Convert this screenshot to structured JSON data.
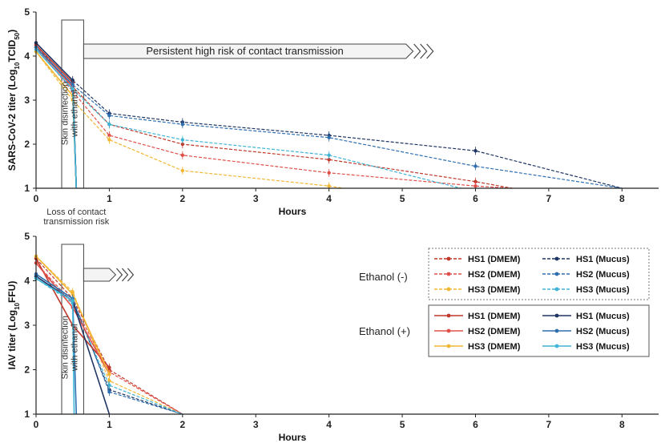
{
  "colors": {
    "HS1 (DMEM)": "#c0392b",
    "HS2 (DMEM)": "#e0504a",
    "HS3 (DMEM)": "#f2b632",
    "HS1 (Mucus)": "#1f3563",
    "HS2 (Mucus)": "#2f6fb0",
    "HS3 (Mucus)": "#3fb4d6"
  },
  "legend": {
    "group_minus": "Ethanol (-)",
    "group_plus": "Ethanol (+)",
    "entries": [
      "HS1 (DMEM)",
      "HS1 (Mucus)",
      "HS2 (DMEM)",
      "HS2 (Mucus)",
      "HS3 (DMEM)",
      "HS3 (Mucus)"
    ]
  },
  "chart_data": [
    {
      "type": "line",
      "xlabel": "Hours",
      "ylabel_main": "SARS-CoV-2 titer (Log",
      "ylabel_sub": "10",
      "ylabel_tail": "TCID",
      "ylabel_sub2": "50",
      "ylabel_close": ")",
      "xlim": [
        0,
        8.5
      ],
      "ylim": [
        1,
        5
      ],
      "x_ticks": [
        0,
        1,
        2,
        3,
        4,
        5,
        6,
        7,
        8
      ],
      "y_ticks": [
        1,
        2,
        3,
        4,
        5
      ],
      "banner": "Persistent high risk of contact transmission",
      "disinfection_note_line1": "Skin disinfection",
      "disinfection_note_line2": "with ethanol",
      "loss_note_line1": "Loss of contact",
      "loss_note_line2": "transmission risk",
      "series": [
        {
          "name": "HS1 (DMEM)",
          "ethanol": false,
          "x": [
            0,
            0.5,
            1,
            2,
            4,
            6,
            6.5
          ],
          "y": [
            4.25,
            3.3,
            2.45,
            2.0,
            1.65,
            1.15,
            1.0
          ]
        },
        {
          "name": "HS2 (DMEM)",
          "ethanol": false,
          "x": [
            0,
            0.5,
            1,
            2,
            4,
            6,
            6.5
          ],
          "y": [
            4.2,
            3.2,
            2.2,
            1.75,
            1.35,
            1.05,
            1.0
          ]
        },
        {
          "name": "HS3 (DMEM)",
          "ethanol": false,
          "x": [
            0,
            0.5,
            1,
            2,
            4,
            4.2
          ],
          "y": [
            4.1,
            3.0,
            2.1,
            1.4,
            1.05,
            1.0
          ]
        },
        {
          "name": "HS1 (Mucus)",
          "ethanol": false,
          "x": [
            0,
            0.5,
            1,
            2,
            4,
            6,
            8
          ],
          "y": [
            4.3,
            3.45,
            2.7,
            2.5,
            2.2,
            1.85,
            1.0
          ]
        },
        {
          "name": "HS2 (Mucus)",
          "ethanol": false,
          "x": [
            0,
            0.5,
            1,
            2,
            4,
            6,
            8
          ],
          "y": [
            4.2,
            3.35,
            2.65,
            2.45,
            2.15,
            1.5,
            1.0
          ]
        },
        {
          "name": "HS3 (Mucus)",
          "ethanol": false,
          "x": [
            0,
            0.5,
            1,
            2,
            4,
            5.8
          ],
          "y": [
            4.15,
            3.25,
            2.45,
            2.1,
            1.75,
            1.0
          ]
        },
        {
          "name": "HS1 (DMEM)",
          "ethanol": true,
          "x": [
            0,
            0.5,
            0.55
          ],
          "y": [
            4.25,
            3.4,
            1.0
          ]
        },
        {
          "name": "HS2 (DMEM)",
          "ethanol": true,
          "x": [
            0,
            0.5,
            0.55
          ],
          "y": [
            4.2,
            3.3,
            1.0
          ]
        },
        {
          "name": "HS3 (DMEM)",
          "ethanol": true,
          "x": [
            0,
            0.5,
            0.55
          ],
          "y": [
            4.1,
            3.1,
            1.0
          ]
        },
        {
          "name": "HS1 (Mucus)",
          "ethanol": true,
          "x": [
            0,
            0.5,
            0.55
          ],
          "y": [
            4.3,
            3.45,
            1.0
          ]
        },
        {
          "name": "HS2 (Mucus)",
          "ethanol": true,
          "x": [
            0,
            0.5,
            0.55
          ],
          "y": [
            4.2,
            3.35,
            1.0
          ]
        },
        {
          "name": "HS3 (Mucus)",
          "ethanol": true,
          "x": [
            0,
            0.5,
            0.55
          ],
          "y": [
            4.15,
            3.25,
            1.0
          ]
        }
      ]
    },
    {
      "type": "line",
      "xlabel": "Hours",
      "ylabel_main": "IAV titer (Log",
      "ylabel_sub": "10",
      "ylabel_tail": "FFU",
      "ylabel_sub2": "",
      "ylabel_close": ")",
      "xlim": [
        0,
        8.5
      ],
      "ylim": [
        1,
        5
      ],
      "x_ticks": [
        0,
        1,
        2,
        3,
        4,
        5,
        6,
        7,
        8
      ],
      "y_ticks": [
        1,
        2,
        3,
        4,
        5
      ],
      "banner": "",
      "disinfection_note_line1": "Skin disinfection",
      "disinfection_note_line2": "with ethanol",
      "loss_note_line1": "",
      "loss_note_line2": "",
      "series": [
        {
          "name": "HS1 (DMEM)",
          "ethanol": false,
          "x": [
            0,
            0.5,
            1,
            2
          ],
          "y": [
            4.5,
            3.6,
            2.0,
            1.0
          ]
        },
        {
          "name": "HS2 (DMEM)",
          "ethanol": false,
          "x": [
            0,
            0.5,
            1,
            2
          ],
          "y": [
            4.4,
            3.5,
            1.95,
            1.0
          ]
        },
        {
          "name": "HS3 (DMEM)",
          "ethanol": false,
          "x": [
            0,
            0.5,
            1,
            2
          ],
          "y": [
            4.55,
            3.75,
            1.75,
            1.0
          ]
        },
        {
          "name": "HS1 (Mucus)",
          "ethanol": false,
          "x": [
            0,
            0.5,
            1,
            2
          ],
          "y": [
            4.1,
            3.55,
            1.55,
            1.0
          ]
        },
        {
          "name": "HS2 (Mucus)",
          "ethanol": false,
          "x": [
            0,
            0.5,
            1,
            2
          ],
          "y": [
            4.15,
            3.6,
            1.5,
            1.0
          ]
        },
        {
          "name": "HS3 (Mucus)",
          "ethanol": false,
          "x": [
            0,
            0.5,
            1,
            2
          ],
          "y": [
            4.05,
            3.5,
            1.65,
            1.0
          ]
        },
        {
          "name": "HS1 (DMEM)",
          "ethanol": true,
          "x": [
            0,
            0.5,
            1
          ],
          "y": [
            4.5,
            3.0,
            2.05
          ]
        },
        {
          "name": "HS2 (DMEM)",
          "ethanol": true,
          "x": [
            0,
            0.5,
            1
          ],
          "y": [
            4.4,
            3.4,
            1.9
          ]
        },
        {
          "name": "HS3 (DMEM)",
          "ethanol": true,
          "x": [
            0,
            0.5,
            1
          ],
          "y": [
            4.55,
            3.7,
            1.9
          ]
        },
        {
          "name": "HS1 (Mucus)",
          "ethanol": true,
          "x": [
            0,
            0.5,
            1
          ],
          "y": [
            4.1,
            3.55,
            1.0
          ]
        },
        {
          "name": "HS2 (Mucus)",
          "ethanol": true,
          "x": [
            0,
            0.5,
            0.55
          ],
          "y": [
            4.15,
            3.6,
            1.0
          ]
        },
        {
          "name": "HS3 (Mucus)",
          "ethanol": true,
          "x": [
            0,
            0.5,
            0.52
          ],
          "y": [
            4.05,
            3.55,
            1.0
          ]
        }
      ]
    }
  ]
}
